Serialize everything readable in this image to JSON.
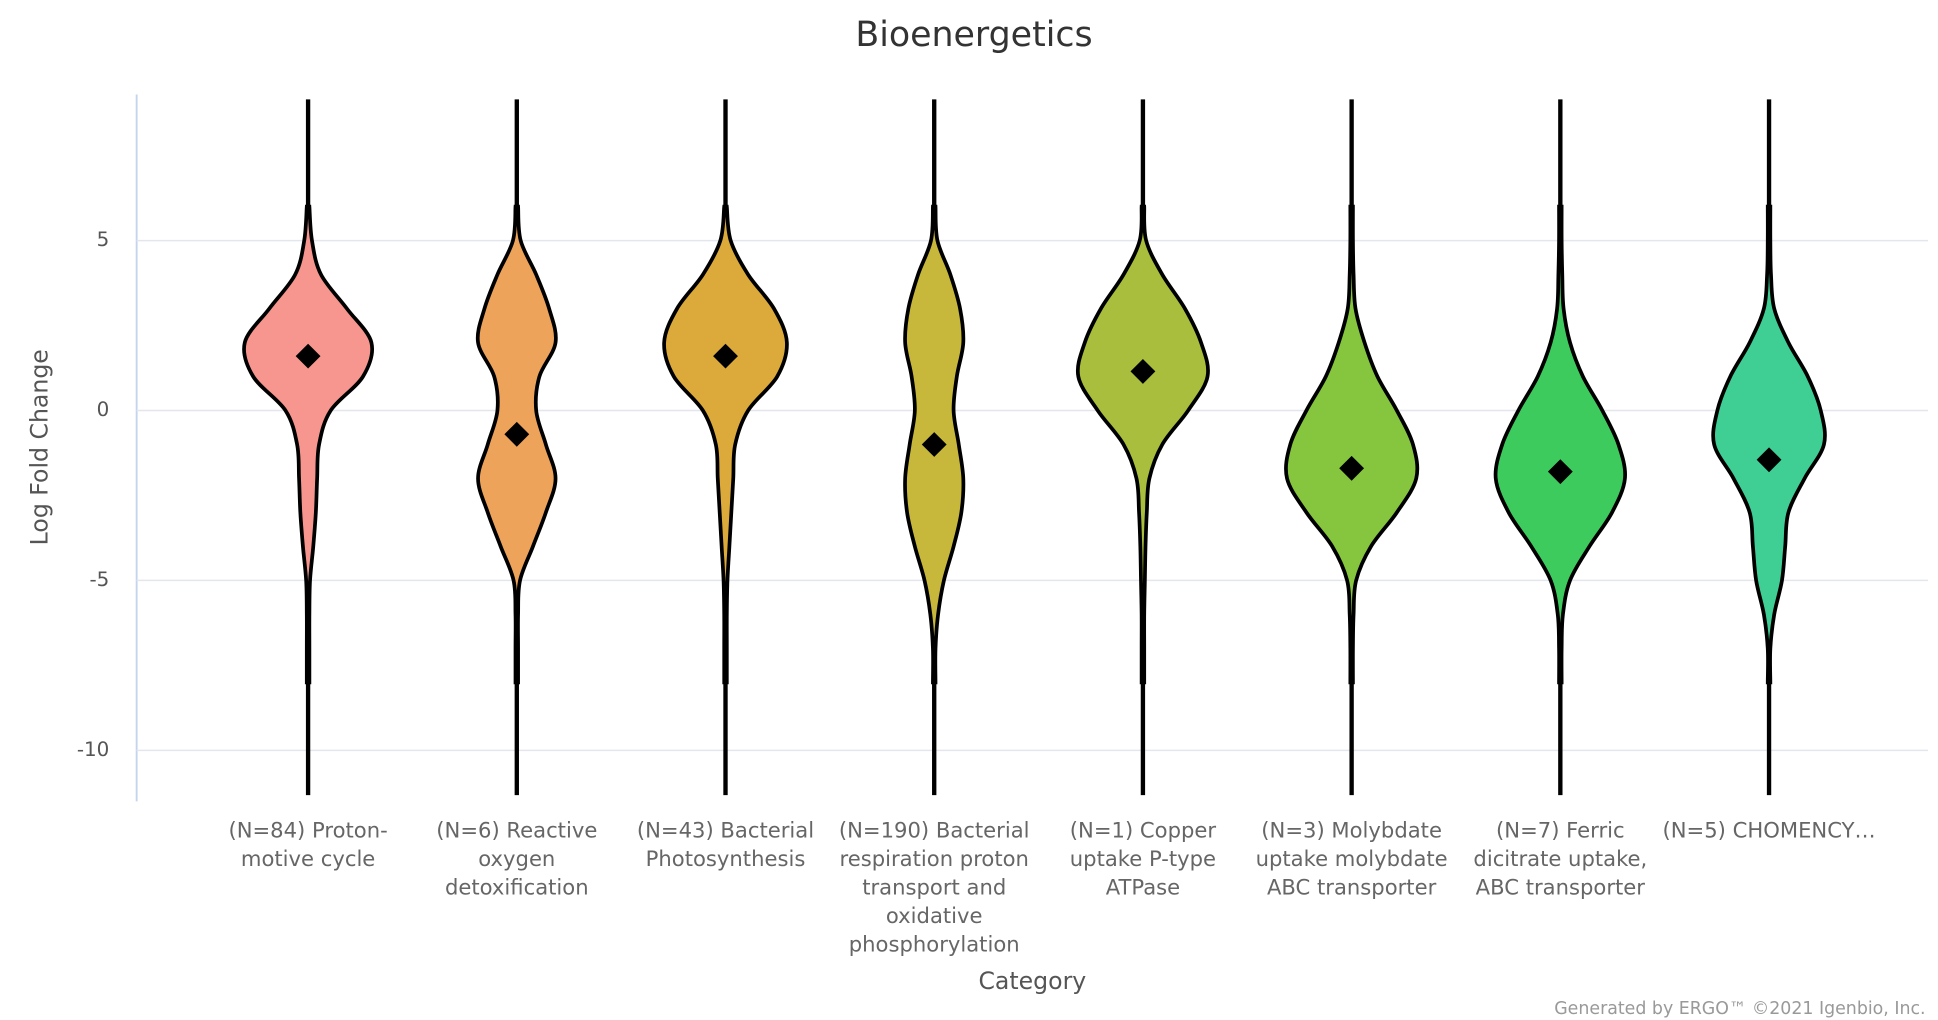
{
  "chart_data": {
    "type": "violin",
    "title": "Bioenergetics",
    "x_label": "Category",
    "y_label": "Log Fold Change",
    "footer": "Generated by ERGO™ ©2021 Igenbio, Inc.",
    "categories": [
      "(N=84) Proton-motive cycle",
      "(N=6) Reactive oxygen detoxification",
      "(N=43) Bacterial Photosynthesis",
      "(N=190) Bacterial respiration proton transport and oxidative phosphorylation",
      "(N=1) Copper uptake P-type ATPase",
      "(N=3) Molybdate uptake molybdate ABC transporter",
      "(N=7) Ferric dicitrate uptake, ABC transporter",
      "(N=5) CHOMENCY…"
    ],
    "means": [
      1.6,
      -0.7,
      1.6,
      -1.0,
      1.15,
      -1.7,
      -1.8,
      -1.45
    ],
    "colors": [
      "#f7968e",
      "#eda35a",
      "#dcaa3a",
      "#c7b83c",
      "#a9be3c",
      "#86c63e",
      "#3ecb5e",
      "#3fcf95"
    ],
    "density_y": [
      6,
      5,
      4,
      3,
      2,
      1,
      0,
      -1,
      -2,
      -3,
      -4,
      -5,
      -6,
      -7,
      -8
    ],
    "density": [
      [
        0.02,
        0.06,
        0.2,
        0.6,
        0.98,
        0.85,
        0.35,
        0.17,
        0.14,
        0.12,
        0.08,
        0.03,
        0.02,
        0.02,
        0.02
      ],
      [
        0.02,
        0.06,
        0.3,
        0.5,
        0.6,
        0.35,
        0.3,
        0.45,
        0.6,
        0.45,
        0.25,
        0.05,
        0.02,
        0.02,
        0.02
      ],
      [
        0.02,
        0.08,
        0.35,
        0.75,
        0.95,
        0.8,
        0.35,
        0.15,
        0.12,
        0.09,
        0.06,
        0.03,
        0.02,
        0.02,
        0.02
      ],
      [
        0.02,
        0.05,
        0.25,
        0.4,
        0.45,
        0.35,
        0.3,
        0.38,
        0.45,
        0.42,
        0.3,
        0.15,
        0.06,
        0.02,
        0.02
      ],
      [
        0.02,
        0.05,
        0.3,
        0.65,
        0.9,
        1.0,
        0.7,
        0.3,
        0.1,
        0.06,
        0.04,
        0.03,
        0.02,
        0.02,
        0.02
      ],
      [
        0.02,
        0.02,
        0.03,
        0.06,
        0.2,
        0.4,
        0.7,
        0.95,
        1.0,
        0.7,
        0.3,
        0.07,
        0.03,
        0.02,
        0.02
      ],
      [
        0.02,
        0.02,
        0.03,
        0.05,
        0.15,
        0.35,
        0.65,
        0.9,
        1.0,
        0.8,
        0.45,
        0.15,
        0.04,
        0.02,
        0.02
      ],
      [
        0.02,
        0.02,
        0.03,
        0.08,
        0.3,
        0.6,
        0.8,
        0.85,
        0.55,
        0.3,
        0.25,
        0.2,
        0.08,
        0.02,
        0.02
      ]
    ],
    "ylim": [
      -11.5,
      9.3
    ],
    "yticks": [
      -10,
      -5,
      0,
      5
    ],
    "grid": true
  }
}
